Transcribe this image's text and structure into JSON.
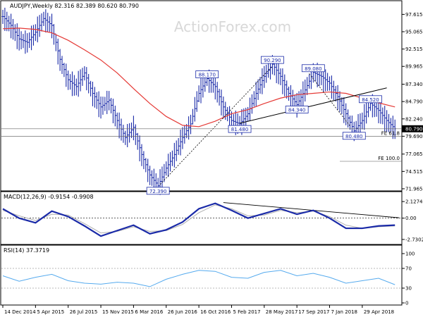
{
  "header": {
    "title": "AUDJPY,Weekly",
    "ohlc": "82.316 82.389 80.620 80.790",
    "watermark": "ActionForex.com"
  },
  "colors": {
    "price_bar": "#1a2aa8",
    "sma": "#e53935",
    "macd": "#1a2aa8",
    "signal": "#b0b0b0",
    "rsi": "#55aaee",
    "trend": "#000000",
    "grid": "#cccccc",
    "current_price_bg": "#000000"
  },
  "chart_data": [
    {
      "type": "line",
      "panel": "price",
      "ylim": [
        71.96,
        98.9
      ],
      "y_ticks": [
        "97.615",
        "95.065",
        "92.515",
        "89.965",
        "87.340",
        "84.790",
        "82.240",
        "79.690",
        "77.065",
        "74.515",
        "71.965"
      ],
      "current_price": "80.790",
      "series": [
        {
          "role": "weekly-price",
          "x": [
            0,
            4,
            8,
            12,
            16,
            20,
            24,
            28,
            32,
            36,
            40,
            44,
            48,
            52,
            56,
            60,
            64,
            68,
            72,
            76,
            80,
            84,
            88,
            92,
            96,
            100,
            104,
            108,
            112,
            116,
            120,
            124,
            128,
            132,
            136,
            140,
            144,
            148,
            152,
            156,
            160,
            164,
            168,
            172,
            176,
            180,
            184,
            188,
            192
          ],
          "values": [
            97.3,
            96.0,
            94.0,
            93.5,
            95.0,
            97.0,
            96.0,
            91.0,
            88.0,
            87.0,
            89.0,
            86.0,
            84.0,
            85.0,
            82.0,
            79.5,
            81.0,
            77.0,
            74.0,
            72.4,
            75.0,
            77.0,
            79.5,
            81.5,
            86.0,
            88.17,
            87.0,
            84.0,
            82.0,
            81.5,
            83.0,
            86.0,
            88.5,
            90.29,
            88.5,
            86.0,
            84.34,
            86.5,
            89.08,
            88.5,
            87.5,
            85.5,
            83.0,
            80.48,
            82.0,
            84.52,
            83.5,
            82.0,
            80.79
          ]
        },
        {
          "role": "sma",
          "x": [
            0,
            8,
            16,
            24,
            32,
            40,
            48,
            56,
            64,
            72,
            80,
            88,
            96,
            104,
            112,
            120,
            128,
            136,
            144,
            152,
            160,
            168,
            176,
            184,
            192
          ],
          "values": [
            95.5,
            95.6,
            95.4,
            94.9,
            93.8,
            92.4,
            90.9,
            89.0,
            86.7,
            84.5,
            82.6,
            81.3,
            81.1,
            81.9,
            83.0,
            83.6,
            84.5,
            85.3,
            85.8,
            86.0,
            86.2,
            86.0,
            85.3,
            84.6,
            84.0
          ]
        }
      ],
      "annotations": [
        {
          "label": "72.390",
          "x": 76,
          "y": 72.39
        },
        {
          "label": "88.170",
          "x": 100,
          "y": 88.17
        },
        {
          "label": "81.480",
          "x": 116,
          "y": 81.48
        },
        {
          "label": "90.290",
          "x": 132,
          "y": 90.29
        },
        {
          "label": "84.340",
          "x": 144,
          "y": 84.34
        },
        {
          "label": "89.080",
          "x": 152,
          "y": 89.08
        },
        {
          "label": "84.520",
          "x": 180,
          "y": 84.52
        },
        {
          "label": "80.480",
          "x": 172,
          "y": 80.48
        }
      ],
      "levels": [
        {
          "label": "FE 61.8",
          "y": 79.69
        },
        {
          "label": "FE 100.0",
          "y": 76.0
        }
      ]
    },
    {
      "type": "line",
      "panel": "macd",
      "title": "MACD(12,26,9) -0.9154 -0.9908",
      "ylim": [
        -3.1,
        2.5
      ],
      "y_ticks": [
        "2.1274",
        "0.00",
        "-2.7302"
      ],
      "series": [
        {
          "role": "macd-line",
          "x": [
            0,
            8,
            16,
            24,
            32,
            40,
            48,
            56,
            64,
            72,
            80,
            88,
            96,
            104,
            112,
            120,
            128,
            136,
            144,
            152,
            160,
            168,
            176,
            184,
            192
          ],
          "values": [
            1.2,
            0.0,
            -0.6,
            0.9,
            0.2,
            -1.0,
            -2.3,
            -1.6,
            -0.9,
            -2.0,
            -1.5,
            -0.5,
            1.2,
            1.9,
            1.0,
            0.0,
            0.6,
            1.2,
            0.5,
            1.0,
            0.0,
            -1.3,
            -1.3,
            -1.0,
            -0.9
          ]
        },
        {
          "role": "signal-line",
          "x": [
            0,
            8,
            16,
            24,
            32,
            40,
            48,
            56,
            64,
            72,
            80,
            88,
            96,
            104,
            112,
            120,
            128,
            136,
            144,
            152,
            160,
            168,
            176,
            184,
            192
          ],
          "values": [
            1.0,
            0.3,
            -0.3,
            0.5,
            0.4,
            -0.7,
            -1.9,
            -1.7,
            -1.1,
            -1.7,
            -1.6,
            -0.8,
            0.7,
            1.7,
            1.2,
            0.3,
            0.4,
            1.0,
            0.7,
            0.9,
            0.2,
            -0.9,
            -1.3,
            -1.1,
            -1.0
          ]
        }
      ]
    },
    {
      "type": "line",
      "panel": "rsi",
      "title": "RSI(14) 37.3719",
      "ylim": [
        0,
        100
      ],
      "y_ticks": [
        "100",
        "70",
        "30",
        "0"
      ],
      "series": [
        {
          "role": "rsi",
          "x": [
            0,
            8,
            16,
            24,
            32,
            40,
            48,
            56,
            64,
            72,
            80,
            88,
            96,
            104,
            112,
            120,
            128,
            136,
            144,
            152,
            160,
            168,
            176,
            184,
            192
          ],
          "values": [
            55,
            44,
            52,
            58,
            45,
            40,
            38,
            42,
            40,
            33,
            48,
            58,
            66,
            64,
            52,
            50,
            62,
            66,
            55,
            60,
            52,
            40,
            45,
            50,
            37
          ]
        }
      ]
    }
  ],
  "x_axis": {
    "labels": [
      "14 Dec 2014",
      "5 Apr 2015",
      "26 Jul 2015",
      "15 Nov 2015",
      "6 Mar 2016",
      "26 Jun 2016",
      "16 Oct 2016",
      "5 Feb 2017",
      "28 May 2017",
      "17 Sep 2017",
      "7 Jan 2018",
      "29 Apr 2018"
    ],
    "label_x": [
      0,
      16,
      32,
      48,
      64,
      80,
      96,
      112,
      128,
      144,
      160,
      176
    ]
  }
}
